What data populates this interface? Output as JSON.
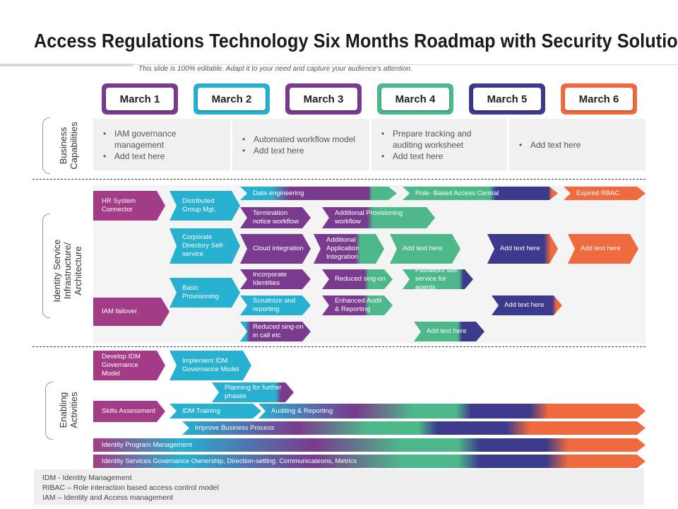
{
  "title": "Access Regulations Technology Six Months Roadmap with Security Solution",
  "subtitle": "This slide is 100% editable. Adapt it to your need and capture your audience's attention.",
  "months": [
    "March 1",
    "March 2",
    "March 3",
    "March 4",
    "March 5",
    "March 6"
  ],
  "colors": {
    "march1": "#7a3a8e",
    "march2": "#27b0cf",
    "march3": "#7a3a8e",
    "march4": "#4db88a",
    "march5": "#3b3a8c",
    "march6": "#ef6a3e"
  },
  "rows": {
    "business": [
      "Business",
      "Capabilities"
    ],
    "identity": [
      "Identity Service",
      "Infrastructure/",
      "Architecture"
    ],
    "enabling": [
      "Enabling",
      "Activities"
    ]
  },
  "business": {
    "col1": [
      "IAM governance management",
      "Add text here"
    ],
    "col2": [
      "Automated workflow model",
      "Add text here"
    ],
    "col3": [
      "Prepare tracking and auditing worksheet",
      "Add text here"
    ],
    "col4": [
      "Add text here"
    ]
  },
  "identity": {
    "hr_system": "HR System Connector",
    "distributed": "Distributed Group Mgt.",
    "data_engineering": "Data engineering",
    "rbac": "Role- Based Access Central",
    "expired_rbac": "Expired RBAC",
    "termination": "Termination notice workflow",
    "additional_prov": "Additional Provisioning workflow",
    "corporate_dir": "Corporate Directory Self-service",
    "cloud": "Cloud integration",
    "additional_app": "Additional Application Integration",
    "add1": "Add text here",
    "add2": "Add text here",
    "add3": "Add text here",
    "incorporate": "Incorporate Identities",
    "reduced_signon": "Reduced sing-on",
    "password": "Password self service for agents",
    "basic_prov": "Basic Provisioning",
    "scrutinize": "Scrutinize and reporting",
    "enhanced": "Enhanced Audit & Reporting",
    "add4": "Add text here",
    "iam_failover": "IAM failover",
    "reduced_call": "Reduced sing-on in call etc",
    "add5": "Add text here"
  },
  "enabling": {
    "develop": "Develop IDM Governance Model",
    "implement": "Implement IDM Governance Model",
    "planning": "Planning for further phases",
    "skills": "Skills Assessment",
    "idm_training": "IDM Training",
    "audit": "Auditing & Reporting",
    "improve": "Improve Business Process",
    "program": "Identity Program Management",
    "governance": "Identity Services Governance Ownership, Direction-setting. Communicateons, Metrics"
  },
  "legend": [
    "IDM -  Identity Management",
    "RIBAC – Role interaction  based access control model",
    "IAM – Identity and Access management"
  ]
}
